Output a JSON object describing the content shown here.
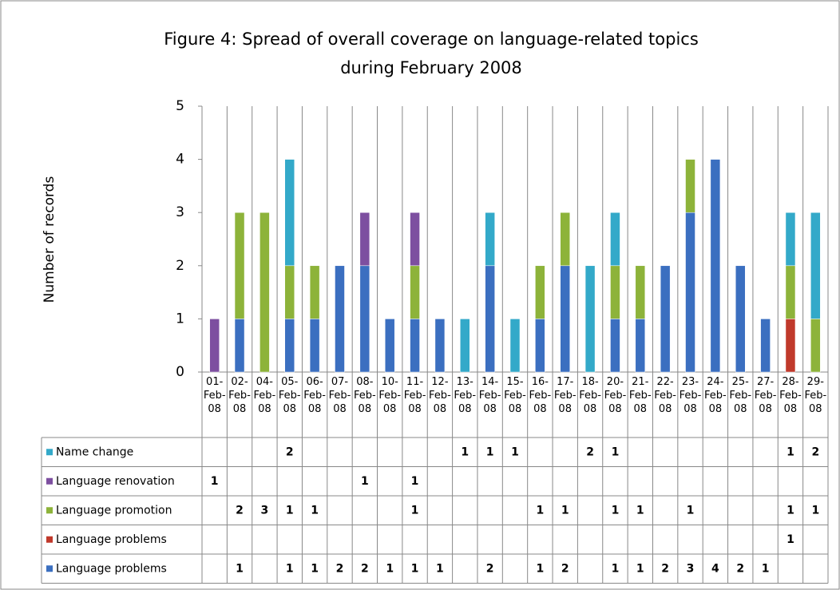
{
  "chart_data": {
    "type": "stacked_bar",
    "title": "Figure 4: Spread of overall coverage on language-related topics",
    "subtitle": "during February 2008",
    "y_label": "Number of records",
    "categories": [
      "01-Feb-08",
      "02-Feb-08",
      "04-Feb-08",
      "05-Feb-08",
      "06-Feb-08",
      "07-Feb-08",
      "08-Feb-08",
      "10-Feb-08",
      "11-Feb-08",
      "12-Feb-08",
      "13-Feb-08",
      "14-Feb-08",
      "15-Feb-08",
      "16-Feb-08",
      "17-Feb-08",
      "18-Feb-08",
      "20-Feb-08",
      "21-Feb-08",
      "22-Feb-08",
      "23-Feb-08",
      "24-Feb-08",
      "25-Feb-08",
      "27-Feb-08",
      "28-Feb-08",
      "29-Feb-08"
    ],
    "series": [
      {
        "name": "Language problems",
        "color": "#3b6fc0",
        "values": [
          null,
          1,
          null,
          1,
          1,
          2,
          2,
          1,
          1,
          1,
          null,
          2,
          null,
          1,
          2,
          null,
          1,
          1,
          2,
          3,
          4,
          2,
          1,
          null,
          null
        ]
      },
      {
        "name": "Language problems",
        "color": "#c0392b",
        "values": [
          null,
          null,
          null,
          null,
          null,
          null,
          null,
          null,
          null,
          null,
          null,
          null,
          null,
          null,
          null,
          null,
          null,
          null,
          null,
          null,
          null,
          null,
          null,
          1,
          null
        ]
      },
      {
        "name": "Language promotion",
        "color": "#8db33a",
        "values": [
          null,
          2,
          3,
          1,
          1,
          null,
          null,
          null,
          1,
          null,
          null,
          null,
          null,
          1,
          1,
          null,
          1,
          1,
          null,
          1,
          null,
          null,
          null,
          1,
          1
        ]
      },
      {
        "name": "Language renovation",
        "color": "#7d4fa0",
        "values": [
          1,
          null,
          null,
          null,
          null,
          null,
          1,
          null,
          1,
          null,
          null,
          null,
          null,
          null,
          null,
          null,
          null,
          null,
          null,
          null,
          null,
          null,
          null,
          null,
          null
        ]
      },
      {
        "name": "Name change",
        "color": "#33a9c9",
        "values": [
          null,
          null,
          null,
          2,
          null,
          null,
          null,
          null,
          null,
          null,
          1,
          1,
          1,
          null,
          null,
          2,
          1,
          null,
          null,
          null,
          null,
          null,
          null,
          1,
          2
        ]
      }
    ],
    "ylim": [
      0,
      5
    ],
    "yticks": [
      0,
      1,
      2,
      3,
      4,
      5
    ],
    "grid": false
  }
}
